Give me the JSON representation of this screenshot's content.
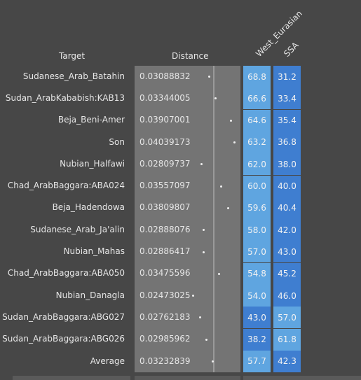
{
  "headers": {
    "target": "Target",
    "distance": "Distance",
    "west_eurasian": "West_Eurasian",
    "ssa": "SSA"
  },
  "colors": {
    "background": "#474747",
    "distance_panel": "#747474",
    "cell_light": "#5fa5e0",
    "cell_dark": "#3f7ed0"
  },
  "rows": [
    {
      "target": "Sudanese_Arab_Batahin",
      "distance": "0.03088832",
      "distance_value": 0.03088832,
      "west_eurasian": "68.8",
      "ssa": "31.2"
    },
    {
      "target": "Sudan_ArabKababish:KAB13",
      "distance": "0.03344005",
      "distance_value": 0.03344005,
      "west_eurasian": "66.6",
      "ssa": "33.4"
    },
    {
      "target": "Beja_Beni-Amer",
      "distance": "0.03907001",
      "distance_value": 0.03907001,
      "west_eurasian": "64.6",
      "ssa": "35.4"
    },
    {
      "target": "Son",
      "distance": "0.04039173",
      "distance_value": 0.04039173,
      "west_eurasian": "63.2",
      "ssa": "36.8"
    },
    {
      "target": "Nubian_Halfawi",
      "distance": "0.02809737",
      "distance_value": 0.02809737,
      "west_eurasian": "62.0",
      "ssa": "38.0"
    },
    {
      "target": "Chad_ArabBaggara:ABA024",
      "distance": "0.03557097",
      "distance_value": 0.03557097,
      "west_eurasian": "60.0",
      "ssa": "40.0"
    },
    {
      "target": "Beja_Hadendowa",
      "distance": "0.03809807",
      "distance_value": 0.03809807,
      "west_eurasian": "59.6",
      "ssa": "40.4"
    },
    {
      "target": "Sudanese_Arab_Ja'alin",
      "distance": "0.02888076",
      "distance_value": 0.02888076,
      "west_eurasian": "58.0",
      "ssa": "42.0"
    },
    {
      "target": "Nubian_Mahas",
      "distance": "0.02886417",
      "distance_value": 0.02886417,
      "west_eurasian": "57.0",
      "ssa": "43.0"
    },
    {
      "target": "Chad_ArabBaggara:ABA050",
      "distance": "0.03475596",
      "distance_value": 0.03475596,
      "west_eurasian": "54.8",
      "ssa": "45.2"
    },
    {
      "target": "Nubian_Danagla",
      "distance": "0.02473025",
      "distance_value": 0.02473025,
      "west_eurasian": "54.0",
      "ssa": "46.0"
    },
    {
      "target": "Sudan_ArabBaggara:ABG027",
      "distance": "0.02762183",
      "distance_value": 0.02762183,
      "west_eurasian": "43.0",
      "ssa": "57.0"
    },
    {
      "target": "Sudan_ArabBaggara:ABG026",
      "distance": "0.02985962",
      "distance_value": 0.02985962,
      "west_eurasian": "38.2",
      "ssa": "61.8"
    },
    {
      "target": "Average",
      "distance": "0.03232839",
      "distance_value": 0.03232839,
      "west_eurasian": "57.7",
      "ssa": "42.3"
    }
  ]
}
